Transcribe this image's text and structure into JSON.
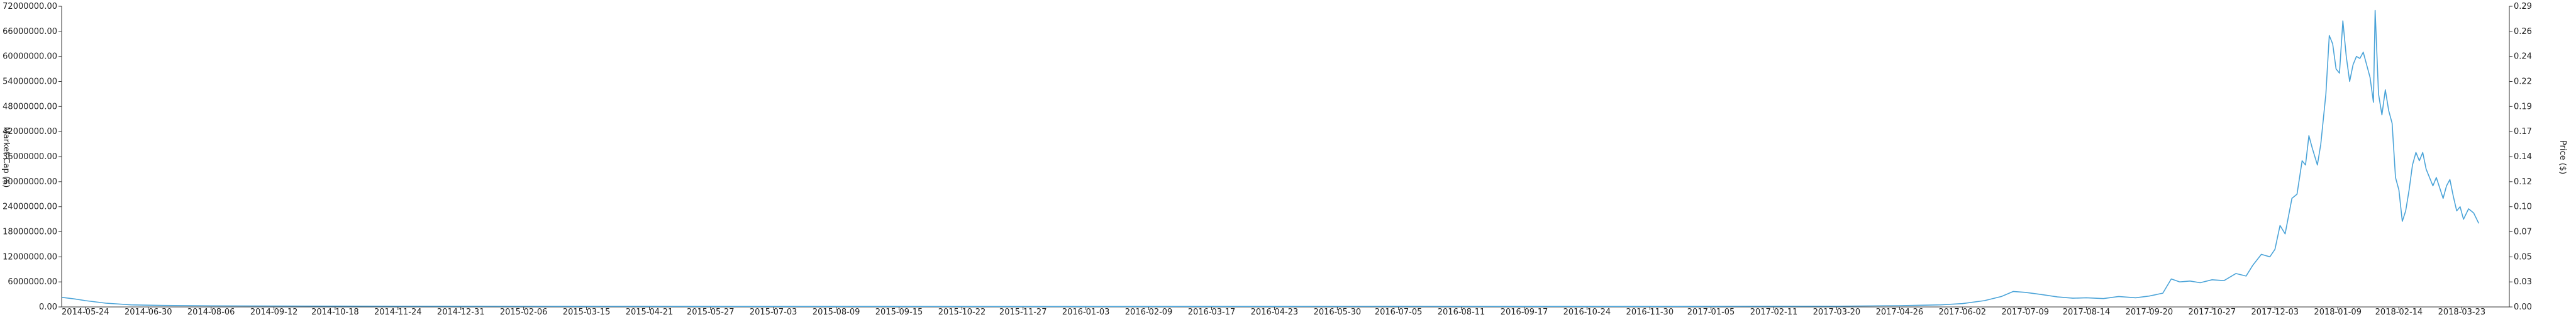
{
  "chart_data": {
    "type": "line",
    "title": "",
    "xlabel": "",
    "ylabel_left": "Market Cap ($)",
    "ylabel_right": "Price ($)",
    "grid": false,
    "legend": "none",
    "colors": {
      "line": "#4aa3d8",
      "axis": "#333333",
      "text": "#222222"
    },
    "x_tick_labels": [
      "2014-05-24",
      "2014-06-30",
      "2014-08-06",
      "2014-09-12",
      "2014-10-18",
      "2014-11-24",
      "2014-12-31",
      "2015-02-06",
      "2015-03-15",
      "2015-04-21",
      "2015-05-27",
      "2015-07-03",
      "2015-08-09",
      "2015-09-15",
      "2015-10-22",
      "2015-11-27",
      "2016-01-03",
      "2016-02-09",
      "2016-03-17",
      "2016-04-23",
      "2016-05-30",
      "2016-07-05",
      "2016-08-11",
      "2016-09-17",
      "2016-10-24",
      "2016-11-30",
      "2017-01-05",
      "2017-02-11",
      "2017-03-20",
      "2017-04-26",
      "2017-06-02",
      "2017-07-09",
      "2017-08-14",
      "2017-09-20",
      "2017-10-27",
      "2017-12-03",
      "2018-01-09",
      "2018-02-14",
      "2018-03-23"
    ],
    "y_left_ticks": [
      "0.00",
      "6000000.00",
      "12000000.00",
      "18000000.00",
      "24000000.00",
      "30000000.00",
      "36000000.00",
      "42000000.00",
      "48000000.00",
      "54000000.00",
      "60000000.00",
      "66000000.00",
      "72000000.00"
    ],
    "y_right_ticks": [
      "0.00",
      "0.03",
      "0.05",
      "0.07",
      "0.10",
      "0.12",
      "0.14",
      "0.17",
      "0.19",
      "0.22",
      "0.24",
      "0.26",
      "0.29"
    ],
    "x_range": [
      "2014-05-10",
      "2018-04-20"
    ],
    "y_left_range": [
      0,
      72000000
    ],
    "y_right_range": [
      0,
      0.29
    ],
    "series": [
      {
        "values": [
          [
            "2014-05-10",
            2300000
          ],
          [
            "2014-05-18",
            1900000
          ],
          [
            "2014-05-24",
            1500000
          ],
          [
            "2014-06-05",
            900000
          ],
          [
            "2014-06-20",
            500000
          ],
          [
            "2014-07-10",
            350000
          ],
          [
            "2014-08-06",
            250000
          ],
          [
            "2014-10-18",
            200000
          ],
          [
            "2015-02-06",
            150000
          ],
          [
            "2015-07-03",
            120000
          ],
          [
            "2016-01-03",
            100000
          ],
          [
            "2016-07-05",
            130000
          ],
          [
            "2016-11-30",
            120000
          ],
          [
            "2017-03-20",
            180000
          ],
          [
            "2017-04-26",
            300000
          ],
          [
            "2017-05-20",
            500000
          ],
          [
            "2017-06-02",
            800000
          ],
          [
            "2017-06-15",
            1500000
          ],
          [
            "2017-06-25",
            2500000
          ],
          [
            "2017-07-02",
            3700000
          ],
          [
            "2017-07-09",
            3500000
          ],
          [
            "2017-07-18",
            3000000
          ],
          [
            "2017-07-28",
            2400000
          ],
          [
            "2017-08-06",
            2100000
          ],
          [
            "2017-08-14",
            2200000
          ],
          [
            "2017-08-24",
            2000000
          ],
          [
            "2017-09-02",
            2500000
          ],
          [
            "2017-09-12",
            2200000
          ],
          [
            "2017-09-20",
            2600000
          ],
          [
            "2017-09-28",
            3300000
          ],
          [
            "2017-10-03",
            6700000
          ],
          [
            "2017-10-08",
            6000000
          ],
          [
            "2017-10-14",
            6200000
          ],
          [
            "2017-10-20",
            5800000
          ],
          [
            "2017-10-27",
            6500000
          ],
          [
            "2017-11-03",
            6300000
          ],
          [
            "2017-11-10",
            8000000
          ],
          [
            "2017-11-16",
            7400000
          ],
          [
            "2017-11-20",
            10000000
          ],
          [
            "2017-11-25",
            12600000
          ],
          [
            "2017-11-30",
            12000000
          ],
          [
            "2017-12-03",
            13800000
          ],
          [
            "2017-12-06",
            19500000
          ],
          [
            "2017-12-09",
            17500000
          ],
          [
            "2017-12-13",
            26000000
          ],
          [
            "2017-12-16",
            27000000
          ],
          [
            "2017-12-19",
            35000000
          ],
          [
            "2017-12-21",
            34000000
          ],
          [
            "2017-12-23",
            41000000
          ],
          [
            "2017-12-25",
            38000000
          ],
          [
            "2017-12-28",
            34000000
          ],
          [
            "2017-12-30",
            39000000
          ],
          [
            "2018-01-02",
            51000000
          ],
          [
            "2018-01-04",
            65000000
          ],
          [
            "2018-01-06",
            63000000
          ],
          [
            "2018-01-08",
            57000000
          ],
          [
            "2018-01-10",
            56000000
          ],
          [
            "2018-01-12",
            68500000
          ],
          [
            "2018-01-14",
            60000000
          ],
          [
            "2018-01-16",
            54000000
          ],
          [
            "2018-01-18",
            58000000
          ],
          [
            "2018-01-20",
            60000000
          ],
          [
            "2018-01-22",
            59500000
          ],
          [
            "2018-01-24",
            61000000
          ],
          [
            "2018-01-26",
            58000000
          ],
          [
            "2018-01-28",
            55000000
          ],
          [
            "2018-01-30",
            49000000
          ],
          [
            "2018-01-31",
            71000000
          ],
          [
            "2018-02-02",
            51000000
          ],
          [
            "2018-02-04",
            46000000
          ],
          [
            "2018-02-06",
            52000000
          ],
          [
            "2018-02-08",
            47000000
          ],
          [
            "2018-02-10",
            44000000
          ],
          [
            "2018-02-12",
            31000000
          ],
          [
            "2018-02-14",
            28000000
          ],
          [
            "2018-02-16",
            20500000
          ],
          [
            "2018-02-18",
            23000000
          ],
          [
            "2018-02-20",
            28000000
          ],
          [
            "2018-02-22",
            34000000
          ],
          [
            "2018-02-24",
            37000000
          ],
          [
            "2018-02-26",
            35000000
          ],
          [
            "2018-02-28",
            37000000
          ],
          [
            "2018-03-02",
            33000000
          ],
          [
            "2018-03-04",
            31000000
          ],
          [
            "2018-03-06",
            29000000
          ],
          [
            "2018-03-08",
            31000000
          ],
          [
            "2018-03-10",
            28500000
          ],
          [
            "2018-03-12",
            26000000
          ],
          [
            "2018-03-14",
            29000000
          ],
          [
            "2018-03-16",
            30500000
          ],
          [
            "2018-03-18",
            26500000
          ],
          [
            "2018-03-20",
            23000000
          ],
          [
            "2018-03-22",
            24000000
          ],
          [
            "2018-03-24",
            21000000
          ],
          [
            "2018-03-27",
            23500000
          ],
          [
            "2018-03-30",
            22500000
          ],
          [
            "2018-04-02",
            20000000
          ]
        ]
      }
    ]
  }
}
